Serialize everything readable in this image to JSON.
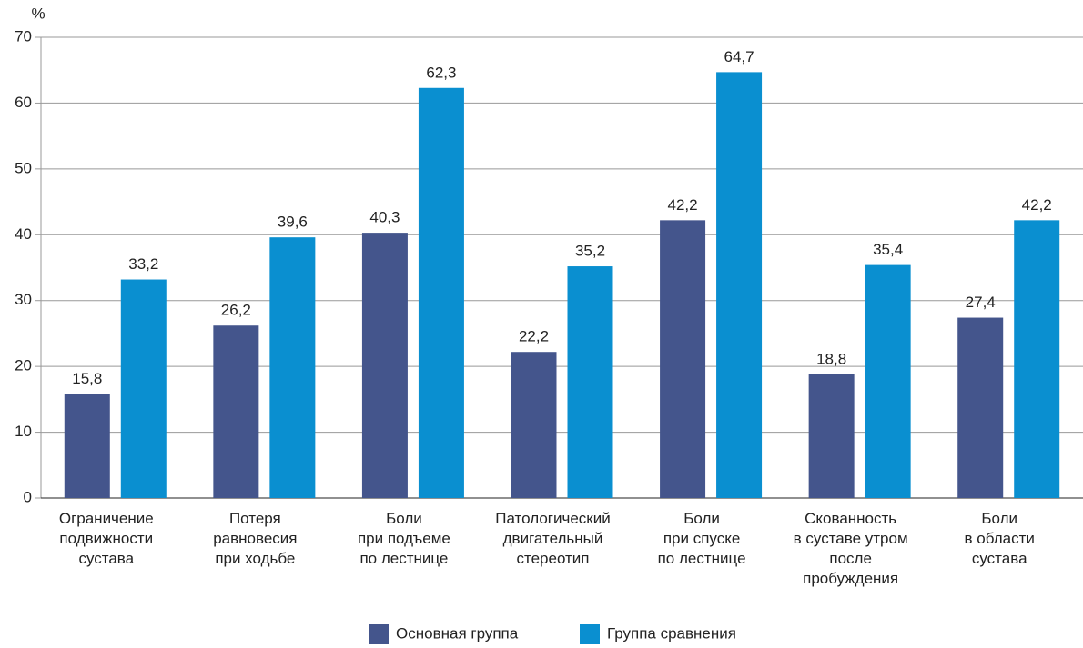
{
  "chart_data": {
    "type": "bar",
    "y_label": "%",
    "categories": [
      "Ограничение\nподвижности\nсустава",
      "Потеря\nравновесия\nпри ходьбе",
      "Боли\nпри подъеме\nпо лестнице",
      "Патологический\nдвигательный\nстереотип",
      "Боли\nпри спуске\nпо лестнице",
      "Скованность\nв суставе утром\nпосле\nпробуждения",
      "Боли\nв области\nсустава"
    ],
    "series": [
      {
        "name": "Основная группа",
        "color": "#44558c",
        "values": [
          15.8,
          26.2,
          40.3,
          22.2,
          42.2,
          18.8,
          27.4
        ],
        "value_labels": [
          "15,8",
          "26,2",
          "40,3",
          "22,2",
          "42,2",
          "18,8",
          "27,4"
        ]
      },
      {
        "name": "Группа сравнения",
        "color": "#0a8fd0",
        "values": [
          33.2,
          39.6,
          62.3,
          35.2,
          64.7,
          35.4,
          42.2
        ],
        "value_labels": [
          "33,2",
          "39,6",
          "62,3",
          "35,2",
          "64,7",
          "35,4",
          "42,2"
        ]
      }
    ],
    "ylim": [
      0,
      70
    ],
    "yticks": [
      0,
      10,
      20,
      30,
      40,
      50,
      60,
      70
    ],
    "grid": true,
    "legend": "bottom"
  }
}
